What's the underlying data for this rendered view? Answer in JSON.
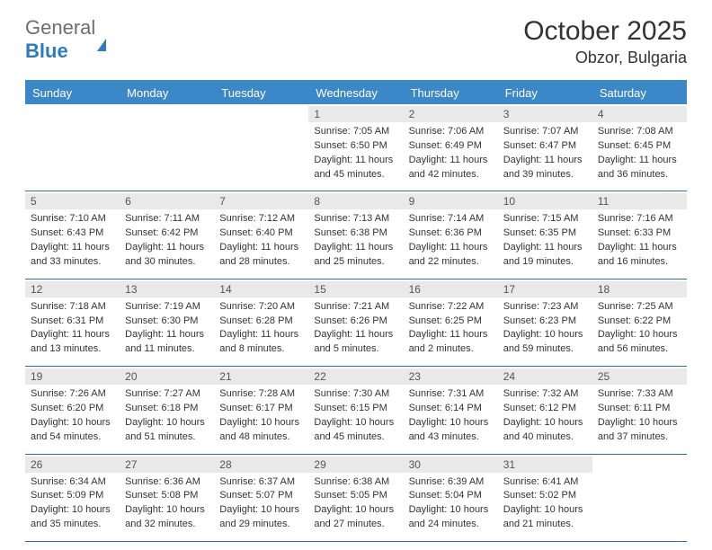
{
  "brand": {
    "part1": "General",
    "part2": "Blue"
  },
  "header": {
    "month_title": "October 2025",
    "location": "Obzor, Bulgaria"
  },
  "colors": {
    "accent": "#3b87c8",
    "date_bg": "#e9e9e9",
    "text": "#333333"
  },
  "day_names": [
    "Sunday",
    "Monday",
    "Tuesday",
    "Wednesday",
    "Thursday",
    "Friday",
    "Saturday"
  ],
  "weeks": [
    [
      null,
      null,
      null,
      {
        "n": "1",
        "sr": "Sunrise: 7:05 AM",
        "ss": "Sunset: 6:50 PM",
        "d1": "Daylight: 11 hours",
        "d2": "and 45 minutes."
      },
      {
        "n": "2",
        "sr": "Sunrise: 7:06 AM",
        "ss": "Sunset: 6:49 PM",
        "d1": "Daylight: 11 hours",
        "d2": "and 42 minutes."
      },
      {
        "n": "3",
        "sr": "Sunrise: 7:07 AM",
        "ss": "Sunset: 6:47 PM",
        "d1": "Daylight: 11 hours",
        "d2": "and 39 minutes."
      },
      {
        "n": "4",
        "sr": "Sunrise: 7:08 AM",
        "ss": "Sunset: 6:45 PM",
        "d1": "Daylight: 11 hours",
        "d2": "and 36 minutes."
      }
    ],
    [
      {
        "n": "5",
        "sr": "Sunrise: 7:10 AM",
        "ss": "Sunset: 6:43 PM",
        "d1": "Daylight: 11 hours",
        "d2": "and 33 minutes."
      },
      {
        "n": "6",
        "sr": "Sunrise: 7:11 AM",
        "ss": "Sunset: 6:42 PM",
        "d1": "Daylight: 11 hours",
        "d2": "and 30 minutes."
      },
      {
        "n": "7",
        "sr": "Sunrise: 7:12 AM",
        "ss": "Sunset: 6:40 PM",
        "d1": "Daylight: 11 hours",
        "d2": "and 28 minutes."
      },
      {
        "n": "8",
        "sr": "Sunrise: 7:13 AM",
        "ss": "Sunset: 6:38 PM",
        "d1": "Daylight: 11 hours",
        "d2": "and 25 minutes."
      },
      {
        "n": "9",
        "sr": "Sunrise: 7:14 AM",
        "ss": "Sunset: 6:36 PM",
        "d1": "Daylight: 11 hours",
        "d2": "and 22 minutes."
      },
      {
        "n": "10",
        "sr": "Sunrise: 7:15 AM",
        "ss": "Sunset: 6:35 PM",
        "d1": "Daylight: 11 hours",
        "d2": "and 19 minutes."
      },
      {
        "n": "11",
        "sr": "Sunrise: 7:16 AM",
        "ss": "Sunset: 6:33 PM",
        "d1": "Daylight: 11 hours",
        "d2": "and 16 minutes."
      }
    ],
    [
      {
        "n": "12",
        "sr": "Sunrise: 7:18 AM",
        "ss": "Sunset: 6:31 PM",
        "d1": "Daylight: 11 hours",
        "d2": "and 13 minutes."
      },
      {
        "n": "13",
        "sr": "Sunrise: 7:19 AM",
        "ss": "Sunset: 6:30 PM",
        "d1": "Daylight: 11 hours",
        "d2": "and 11 minutes."
      },
      {
        "n": "14",
        "sr": "Sunrise: 7:20 AM",
        "ss": "Sunset: 6:28 PM",
        "d1": "Daylight: 11 hours",
        "d2": "and 8 minutes."
      },
      {
        "n": "15",
        "sr": "Sunrise: 7:21 AM",
        "ss": "Sunset: 6:26 PM",
        "d1": "Daylight: 11 hours",
        "d2": "and 5 minutes."
      },
      {
        "n": "16",
        "sr": "Sunrise: 7:22 AM",
        "ss": "Sunset: 6:25 PM",
        "d1": "Daylight: 11 hours",
        "d2": "and 2 minutes."
      },
      {
        "n": "17",
        "sr": "Sunrise: 7:23 AM",
        "ss": "Sunset: 6:23 PM",
        "d1": "Daylight: 10 hours",
        "d2": "and 59 minutes."
      },
      {
        "n": "18",
        "sr": "Sunrise: 7:25 AM",
        "ss": "Sunset: 6:22 PM",
        "d1": "Daylight: 10 hours",
        "d2": "and 56 minutes."
      }
    ],
    [
      {
        "n": "19",
        "sr": "Sunrise: 7:26 AM",
        "ss": "Sunset: 6:20 PM",
        "d1": "Daylight: 10 hours",
        "d2": "and 54 minutes."
      },
      {
        "n": "20",
        "sr": "Sunrise: 7:27 AM",
        "ss": "Sunset: 6:18 PM",
        "d1": "Daylight: 10 hours",
        "d2": "and 51 minutes."
      },
      {
        "n": "21",
        "sr": "Sunrise: 7:28 AM",
        "ss": "Sunset: 6:17 PM",
        "d1": "Daylight: 10 hours",
        "d2": "and 48 minutes."
      },
      {
        "n": "22",
        "sr": "Sunrise: 7:30 AM",
        "ss": "Sunset: 6:15 PM",
        "d1": "Daylight: 10 hours",
        "d2": "and 45 minutes."
      },
      {
        "n": "23",
        "sr": "Sunrise: 7:31 AM",
        "ss": "Sunset: 6:14 PM",
        "d1": "Daylight: 10 hours",
        "d2": "and 43 minutes."
      },
      {
        "n": "24",
        "sr": "Sunrise: 7:32 AM",
        "ss": "Sunset: 6:12 PM",
        "d1": "Daylight: 10 hours",
        "d2": "and 40 minutes."
      },
      {
        "n": "25",
        "sr": "Sunrise: 7:33 AM",
        "ss": "Sunset: 6:11 PM",
        "d1": "Daylight: 10 hours",
        "d2": "and 37 minutes."
      }
    ],
    [
      {
        "n": "26",
        "sr": "Sunrise: 6:34 AM",
        "ss": "Sunset: 5:09 PM",
        "d1": "Daylight: 10 hours",
        "d2": "and 35 minutes."
      },
      {
        "n": "27",
        "sr": "Sunrise: 6:36 AM",
        "ss": "Sunset: 5:08 PM",
        "d1": "Daylight: 10 hours",
        "d2": "and 32 minutes."
      },
      {
        "n": "28",
        "sr": "Sunrise: 6:37 AM",
        "ss": "Sunset: 5:07 PM",
        "d1": "Daylight: 10 hours",
        "d2": "and 29 minutes."
      },
      {
        "n": "29",
        "sr": "Sunrise: 6:38 AM",
        "ss": "Sunset: 5:05 PM",
        "d1": "Daylight: 10 hours",
        "d2": "and 27 minutes."
      },
      {
        "n": "30",
        "sr": "Sunrise: 6:39 AM",
        "ss": "Sunset: 5:04 PM",
        "d1": "Daylight: 10 hours",
        "d2": "and 24 minutes."
      },
      {
        "n": "31",
        "sr": "Sunrise: 6:41 AM",
        "ss": "Sunset: 5:02 PM",
        "d1": "Daylight: 10 hours",
        "d2": "and 21 minutes."
      },
      null
    ]
  ]
}
